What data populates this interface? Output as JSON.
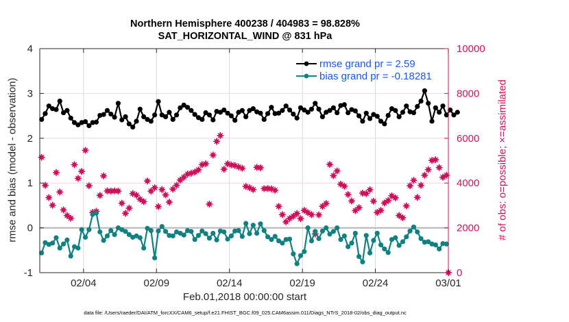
{
  "chart_data": {
    "type": "line",
    "title": "Northern Hemisphere 400238 / 404983 = 98.828%",
    "subtitle": "SAT_HORIZONTAL_WIND @ 831 hPa",
    "xlabel": "Feb.01,2018 00:00:00 start",
    "ylabel_left": "rmse and bias (model - observation)",
    "ylabel_right": "# of obs: o=possible; ×=assimilated",
    "footer": "data file: /Users/raeder/DAI/ATM_forcXX/CAM6_setup/f.e21.FHIST_BGC.f09_025.CAM6assim.011/Diags_NTrS_2018-02/obs_diag_output.nc",
    "x_unit": "days since Feb.01,2018 00:00:00",
    "xlim": [
      0,
      28
    ],
    "x_ticks": [
      3,
      8,
      13,
      18,
      23,
      28
    ],
    "x_tick_labels": [
      "02/04",
      "02/09",
      "02/14",
      "02/19",
      "02/24",
      "03/01"
    ],
    "ylim_left": [
      -1,
      4
    ],
    "y_ticks_left": [
      -1,
      0,
      1,
      2,
      3,
      4
    ],
    "ylim_right": [
      0,
      10000
    ],
    "y_ticks_right": [
      0,
      2000,
      4000,
      6000,
      8000,
      10000
    ],
    "grid": true,
    "zero_line": 0,
    "legend_placement": "top-right",
    "legend": [
      "rmse grand pr = 2.59",
      "bias grand pr = -0.18281"
    ],
    "colors": {
      "rmse": "#000000",
      "bias": "#108080",
      "obs": "#d0105a",
      "legend_text": "#1a55e6",
      "zero_line": "#b4b4b4"
    },
    "x_step_days": 0.25,
    "x_start_days": 0.125,
    "series": [
      {
        "name": "rmse",
        "axis": "left",
        "values": [
          2.42,
          2.55,
          2.72,
          2.66,
          2.64,
          2.83,
          2.57,
          2.62,
          2.45,
          2.35,
          2.3,
          2.35,
          2.37,
          2.28,
          2.35,
          2.36,
          2.51,
          2.53,
          2.62,
          2.54,
          2.47,
          2.78,
          2.41,
          2.48,
          2.32,
          2.25,
          2.38,
          2.65,
          2.48,
          2.42,
          2.38,
          2.52,
          2.82,
          2.52,
          2.48,
          2.58,
          2.42,
          2.52,
          2.68,
          2.74,
          2.69,
          2.62,
          2.53,
          2.46,
          2.42,
          2.57,
          2.52,
          2.41,
          2.6,
          2.58,
          2.63,
          2.56,
          2.5,
          2.4,
          2.58,
          2.62,
          2.48,
          2.62,
          2.66,
          2.59,
          2.56,
          2.42,
          2.55,
          2.69,
          2.55,
          2.56,
          2.62,
          2.72,
          2.63,
          2.54,
          2.45,
          2.68,
          2.63,
          2.58,
          2.65,
          2.78,
          2.65,
          2.48,
          2.58,
          2.62,
          2.68,
          2.57,
          2.73,
          2.75,
          2.57,
          2.64,
          2.61,
          2.5,
          2.38,
          2.56,
          2.44,
          2.53,
          2.49,
          2.38,
          2.32,
          2.51,
          2.66,
          2.62,
          2.48,
          2.58,
          2.72,
          2.59,
          2.57,
          2.71,
          2.83,
          3.06,
          2.78,
          2.38,
          2.68,
          2.58,
          2.72,
          2.52,
          2.63,
          2.52,
          2.58
        ]
      },
      {
        "name": "bias",
        "axis": "left",
        "values": [
          -0.56,
          -0.33,
          -0.37,
          -0.34,
          -0.22,
          -0.45,
          -0.36,
          -0.27,
          -0.63,
          -0.42,
          -0.45,
          -0.04,
          -0.21,
          -0.04,
          0.3,
          0.33,
          -0.09,
          -0.28,
          -0.18,
          -0.06,
          -0.15,
          0.0,
          -0.04,
          -0.08,
          -0.15,
          -0.21,
          -0.18,
          -0.22,
          -0.45,
          -0.01,
          -0.06,
          -0.67,
          -0.07,
          0.03,
          -0.08,
          -0.17,
          -0.18,
          -0.09,
          -0.12,
          -0.16,
          -0.06,
          -0.08,
          -0.26,
          -0.17,
          -0.07,
          -0.13,
          -0.23,
          -0.12,
          -0.27,
          -0.07,
          -0.09,
          -0.25,
          -0.18,
          -0.07,
          -0.06,
          -0.19,
          0.1,
          -0.13,
          0.06,
          -0.12,
          0.09,
          -0.06,
          -0.2,
          -0.26,
          -0.19,
          -0.29,
          -0.34,
          -0.26,
          -0.25,
          -0.58,
          -0.8,
          -0.62,
          -0.53,
          0.0,
          -0.29,
          -0.08,
          -0.24,
          -0.07,
          0.0,
          -0.14,
          -0.08,
          0.0,
          -0.26,
          -0.18,
          -0.42,
          -0.34,
          -0.12,
          -0.64,
          -0.76,
          -0.17,
          -0.56,
          -0.28,
          -0.12,
          -0.38,
          -0.47,
          -0.55,
          -0.26,
          -0.22,
          -0.39,
          -0.31,
          -0.2,
          -0.07,
          0.02,
          -0.09,
          -0.24,
          -0.32,
          -0.31,
          -0.36,
          -0.38,
          -0.47,
          -0.35,
          -0.36
        ]
      },
      {
        "name": "obs_count",
        "axis": "right",
        "marker": "o+x",
        "points": [
          [
            0.125,
            5150
          ],
          [
            0.375,
            3900
          ],
          [
            0.625,
            3350
          ],
          [
            0.875,
            3010
          ],
          [
            1.125,
            4470
          ],
          [
            1.375,
            3600
          ],
          [
            1.625,
            2800
          ],
          [
            1.875,
            2550
          ],
          [
            2.125,
            2430
          ],
          [
            2.375,
            4820
          ],
          [
            2.625,
            4210
          ],
          [
            2.875,
            4520
          ],
          [
            3.125,
            5460
          ],
          [
            3.375,
            3880
          ],
          [
            3.625,
            2690
          ],
          [
            3.875,
            2740
          ],
          [
            4.125,
            3450
          ],
          [
            4.375,
            4320
          ],
          [
            4.625,
            3650
          ],
          [
            4.875,
            3640
          ],
          [
            5.125,
            3650
          ],
          [
            5.375,
            3640
          ],
          [
            5.625,
            3100
          ],
          [
            5.875,
            2650
          ],
          [
            6.125,
            2880
          ],
          [
            6.375,
            3530
          ],
          [
            6.625,
            3460
          ],
          [
            6.875,
            3280
          ],
          [
            7.125,
            3170
          ],
          [
            7.375,
            4090
          ],
          [
            7.625,
            3640
          ],
          [
            7.875,
            3790
          ],
          [
            8.125,
            2950
          ],
          [
            8.375,
            3710
          ],
          [
            8.625,
            3470
          ],
          [
            8.875,
            3150
          ],
          [
            9.125,
            3730
          ],
          [
            9.375,
            3900
          ],
          [
            9.625,
            4130
          ],
          [
            9.875,
            4260
          ],
          [
            10.125,
            4400
          ],
          [
            10.375,
            4440
          ],
          [
            10.625,
            4490
          ],
          [
            10.875,
            4590
          ],
          [
            11.125,
            4820
          ],
          [
            11.375,
            4860
          ],
          [
            11.625,
            3060
          ],
          [
            11.875,
            5250
          ],
          [
            12.125,
            5860
          ],
          [
            12.375,
            6120
          ],
          [
            12.625,
            4620
          ],
          [
            12.875,
            4860
          ],
          [
            13.125,
            4810
          ],
          [
            13.375,
            4780
          ],
          [
            13.625,
            4720
          ],
          [
            13.875,
            4660
          ],
          [
            14.125,
            3850
          ],
          [
            14.375,
            3790
          ],
          [
            14.625,
            3710
          ],
          [
            14.875,
            4700
          ],
          [
            15.125,
            4680
          ],
          [
            15.375,
            3750
          ],
          [
            15.625,
            3760
          ],
          [
            15.875,
            3740
          ],
          [
            16.125,
            3680
          ],
          [
            16.375,
            2960
          ],
          [
            16.625,
            2590
          ],
          [
            16.875,
            2270
          ],
          [
            17.125,
            2420
          ],
          [
            17.375,
            2520
          ],
          [
            17.625,
            2640
          ],
          [
            17.875,
            2410
          ],
          [
            18.125,
            2780
          ],
          [
            18.375,
            2680
          ],
          [
            18.625,
            2590
          ],
          [
            18.875,
            1730
          ],
          [
            19.125,
            2580
          ],
          [
            19.375,
            2960
          ],
          [
            19.625,
            3090
          ],
          [
            19.875,
            4830
          ],
          [
            20.125,
            4330
          ],
          [
            20.375,
            4540
          ],
          [
            20.625,
            3950
          ],
          [
            20.875,
            3860
          ],
          [
            21.125,
            3490
          ],
          [
            21.375,
            3200
          ],
          [
            21.625,
            2770
          ],
          [
            21.875,
            2900
          ],
          [
            22.125,
            3550
          ],
          [
            22.375,
            3530
          ],
          [
            22.625,
            3700
          ],
          [
            22.875,
            3190
          ],
          [
            23.125,
            2690
          ],
          [
            23.375,
            2780
          ],
          [
            23.625,
            3110
          ],
          [
            23.875,
            3220
          ],
          [
            24.125,
            3430
          ],
          [
            24.375,
            3340
          ],
          [
            24.625,
            2550
          ],
          [
            24.875,
            2450
          ],
          [
            25.125,
            2980
          ],
          [
            25.375,
            3880
          ],
          [
            25.625,
            4120
          ],
          [
            25.875,
            3360
          ],
          [
            26.125,
            3900
          ],
          [
            26.375,
            4350
          ],
          [
            26.625,
            4600
          ],
          [
            26.875,
            5010
          ],
          [
            27.125,
            5040
          ],
          [
            27.375,
            4690
          ],
          [
            27.625,
            4260
          ],
          [
            27.875,
            4350
          ],
          [
            28.0,
            0
          ]
        ]
      }
    ]
  }
}
